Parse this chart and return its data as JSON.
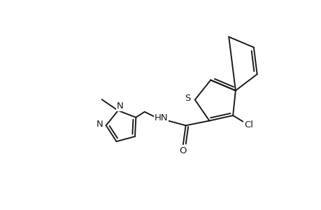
{
  "bg": "#ffffff",
  "bc": "#1a1a1a",
  "lw": 1.4,
  "fs": 9.5,
  "figsize": [
    4.6,
    3.0
  ],
  "dpi": 100,
  "xlim": [
    -1,
    11
  ],
  "ylim": [
    -0.5,
    7.5
  ]
}
